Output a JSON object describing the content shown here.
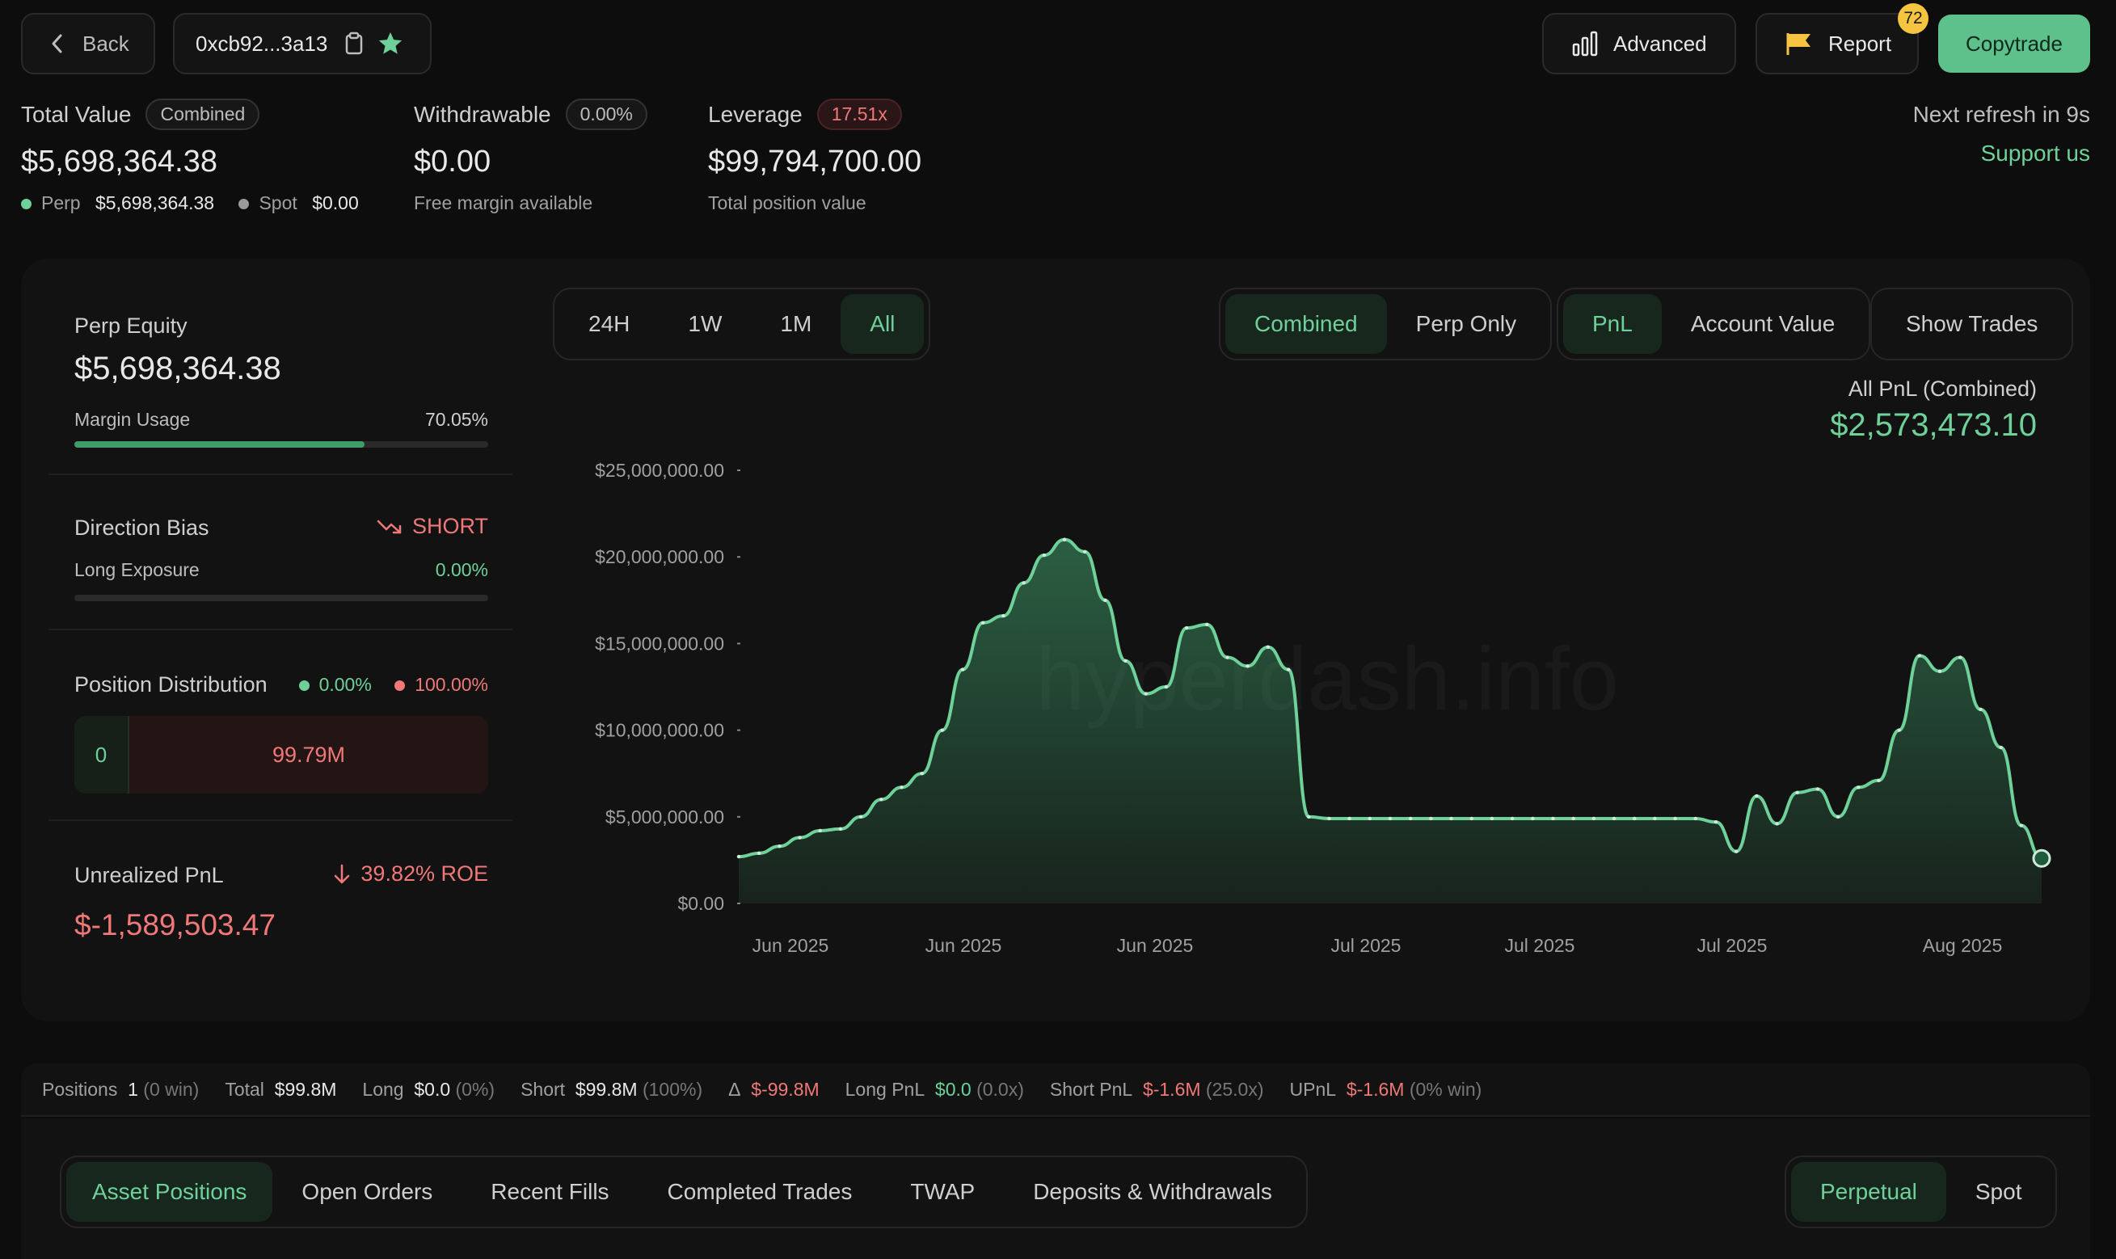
{
  "header": {
    "back_label": "Back",
    "address": "0xcb92...3a13",
    "advanced_label": "Advanced",
    "report_label": "Report",
    "report_badge": "72",
    "copytrade_label": "Copytrade",
    "refresh_text": "Next refresh in 9s",
    "support_label": "Support us"
  },
  "summary": {
    "total_value_label": "Total Value",
    "total_value_tag": "Combined",
    "total_value": "$5,698,364.38",
    "perp_label": "Perp",
    "perp_value": "$5,698,364.38",
    "spot_label": "Spot",
    "spot_value": "$0.00",
    "withdrawable_label": "Withdrawable",
    "withdrawable_tag": "0.00%",
    "withdrawable_value": "$0.00",
    "withdrawable_sub": "Free margin available",
    "leverage_label": "Leverage",
    "leverage_tag": "17.51x",
    "leverage_value": "$99,794,700.00",
    "leverage_sub": "Total position value"
  },
  "left_panel": {
    "perp_equity_label": "Perp Equity",
    "perp_equity_value": "$5,698,364.38",
    "margin_usage_label": "Margin Usage",
    "margin_usage_value": "70.05%",
    "margin_usage_fraction": 0.7005,
    "direction_bias_label": "Direction Bias",
    "direction_bias_value": "SHORT",
    "long_exposure_label": "Long Exposure",
    "long_exposure_value": "0.00%",
    "position_distribution_label": "Position Distribution",
    "dist_long_pct": "0.00%",
    "dist_short_pct": "100.00%",
    "dist_long_value": "0",
    "dist_short_value": "99.79M",
    "unrealized_pnl_label": "Unrealized PnL",
    "roe_text": "39.82% ROE",
    "unrealized_pnl_value": "$-1,589,503.47"
  },
  "chart_controls": {
    "ranges": [
      "24H",
      "1W",
      "1M",
      "All"
    ],
    "active_range": "All",
    "modes": [
      "Combined",
      "Perp Only"
    ],
    "metrics": [
      "PnL",
      "Account Value"
    ],
    "show_trades_label": "Show Trades"
  },
  "chart_header": {
    "label": "All PnL (Combined)",
    "value": "$2,573,473.10"
  },
  "watermark": "hyperdash.info",
  "chart_data": {
    "type": "area",
    "y_ticks": [
      "$25,000,000.00",
      "$20,000,000.00",
      "$15,000,000.00",
      "$10,000,000.00",
      "$5,000,000.00",
      "$0.00"
    ],
    "ylim": [
      0,
      25000000
    ],
    "x_ticks": [
      "Jun 2025",
      "Jun 2025",
      "Jun 2025",
      "Jul 2025",
      "Jul 2025",
      "Jul 2025",
      "Aug 2025"
    ],
    "color": "#6fd19a",
    "grid": false,
    "series": [
      {
        "values": [
          2700000,
          2900000,
          3300000,
          3800000,
          4200000,
          4300000,
          5000000,
          6000000,
          6700000,
          7500000,
          10000000,
          13500000,
          16200000,
          16600000,
          18500000,
          20100000,
          21000000,
          20300000,
          17500000,
          14000000,
          12100000,
          12500000,
          15900000,
          16100000,
          14200000,
          13700000,
          14800000,
          13500000,
          5000000,
          4900000,
          4900000,
          4900000,
          4900000,
          4900000,
          4900000,
          4900000,
          4900000,
          4900000,
          4900000,
          4900000,
          4900000,
          4900000,
          4900000,
          4900000,
          4900000,
          4900000,
          4900000,
          4900000,
          4700000,
          3000000,
          6200000,
          4600000,
          6400000,
          6600000,
          5000000,
          6700000,
          7100000,
          10000000,
          14300000,
          13400000,
          14200000,
          11200000,
          9000000,
          4500000,
          2600000
        ]
      }
    ]
  },
  "stats_bar": {
    "positions_label": "Positions",
    "positions_value": "1",
    "positions_sub": "(0 win)",
    "total_label": "Total",
    "total_value": "$99.8M",
    "long_label": "Long",
    "long_value": "$0.0",
    "long_sub": "(0%)",
    "short_label": "Short",
    "short_value": "$99.8M",
    "short_sub": "(100%)",
    "delta_label": "Δ",
    "delta_value": "$-99.8M",
    "long_pnl_label": "Long PnL",
    "long_pnl_value": "$0.0",
    "long_pnl_sub": "(0.0x)",
    "short_pnl_label": "Short PnL",
    "short_pnl_value": "$-1.6M",
    "short_pnl_sub": "(25.0x)",
    "upnl_label": "UPnL",
    "upnl_value": "$-1.6M",
    "upnl_sub": "(0% win)"
  },
  "bottom_tabs": {
    "tabs": [
      "Asset Positions",
      "Open Orders",
      "Recent Fills",
      "Completed Trades",
      "TWAP",
      "Deposits & Withdrawals"
    ],
    "active": "Asset Positions",
    "market": [
      "Perpetual",
      "Spot"
    ],
    "active_market": "Perpetual"
  }
}
